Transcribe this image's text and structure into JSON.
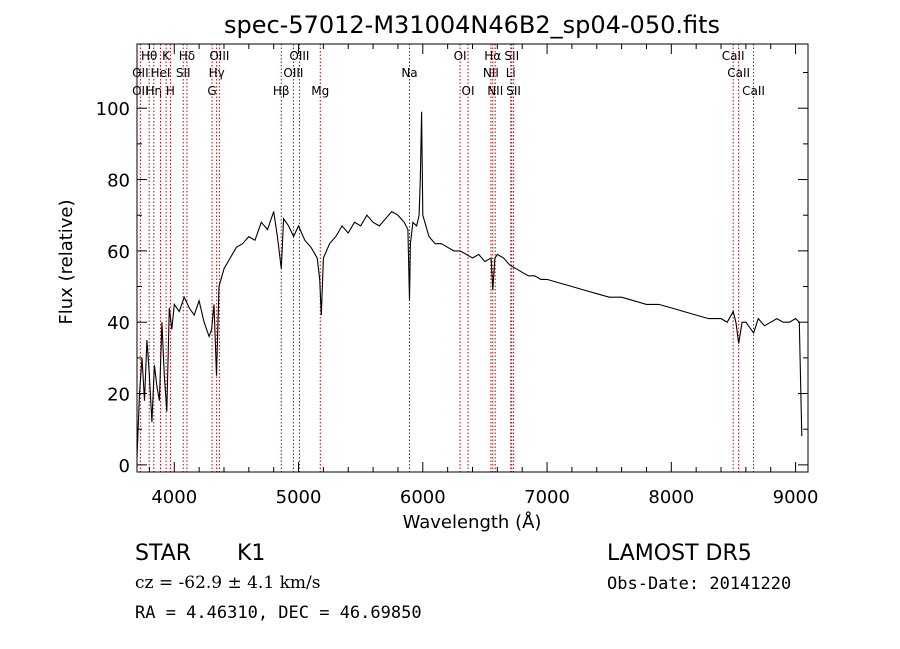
{
  "chart_data": {
    "type": "line",
    "title": "spec-57012-M31004N46B2_sp04-050.fits",
    "xlabel": "Wavelength (Å)",
    "ylabel": "Flux (relative)",
    "xlim": [
      3700,
      9100
    ],
    "ylim": [
      -2,
      118
    ],
    "x_ticks": [
      4000,
      5000,
      6000,
      7000,
      8000,
      9000
    ],
    "y_ticks": [
      0,
      20,
      40,
      60,
      80,
      100
    ],
    "grid": false,
    "series": [
      {
        "x": [
          3700,
          3720,
          3740,
          3760,
          3780,
          3800,
          3820,
          3840,
          3860,
          3880,
          3900,
          3920,
          3940,
          3960,
          3980,
          4000,
          4040,
          4080,
          4120,
          4160,
          4200,
          4240,
          4280,
          4300,
          4320,
          4340,
          4360,
          4400,
          4450,
          4500,
          4550,
          4600,
          4650,
          4700,
          4750,
          4800,
          4830,
          4861,
          4880,
          4920,
          4960,
          5000,
          5050,
          5100,
          5150,
          5170,
          5183,
          5200,
          5250,
          5300,
          5350,
          5400,
          5450,
          5500,
          5550,
          5600,
          5650,
          5700,
          5750,
          5800,
          5850,
          5880,
          5893,
          5900,
          5920,
          5950,
          5970,
          5980,
          5990,
          6000,
          6050,
          6100,
          6150,
          6200,
          6250,
          6300,
          6350,
          6400,
          6450,
          6500,
          6550,
          6563,
          6580,
          6600,
          6650,
          6700,
          6750,
          6800,
          6850,
          6900,
          6950,
          7000,
          7100,
          7200,
          7300,
          7400,
          7500,
          7600,
          7700,
          7800,
          7900,
          8000,
          8100,
          8200,
          8300,
          8400,
          8450,
          8498,
          8520,
          8542,
          8570,
          8600,
          8662,
          8700,
          8750,
          8800,
          8850,
          8900,
          8950,
          9000,
          9030,
          9050
        ],
        "y": [
          2,
          20,
          30,
          18,
          35,
          25,
          12,
          28,
          22,
          18,
          40,
          25,
          15,
          44,
          38,
          45,
          43,
          47,
          44,
          42,
          46,
          40,
          36,
          38,
          45,
          25,
          50,
          55,
          58,
          61,
          62,
          64,
          63,
          68,
          66,
          71,
          64,
          55,
          69,
          67,
          64,
          67,
          63,
          61,
          58,
          52,
          42,
          58,
          62,
          64,
          67,
          65,
          68,
          67,
          70,
          68,
          67,
          69,
          71,
          70,
          68,
          66,
          46,
          62,
          68,
          67,
          70,
          80,
          99,
          70,
          64,
          62,
          62,
          61,
          60,
          60,
          59,
          58,
          59,
          57,
          58,
          49,
          58,
          59,
          58,
          56,
          55,
          54,
          53,
          53,
          52,
          52,
          51,
          50,
          49,
          48,
          47,
          47,
          46,
          45,
          45,
          44,
          43,
          42,
          41,
          41,
          40,
          43,
          40,
          34,
          40,
          40,
          37,
          41,
          39,
          40,
          41,
          40,
          40,
          41,
          40,
          8
        ]
      }
    ],
    "lines": [
      {
        "label": "OII",
        "wave": 3727,
        "row": 2
      },
      {
        "label": "Hθ",
        "wave": 3798,
        "row": 1
      },
      {
        "label": "OII",
        "wave": 3727,
        "row": 3
      },
      {
        "label": "Hη",
        "wave": 3835,
        "row": 3
      },
      {
        "label": "HeI",
        "wave": 3889,
        "row": 2
      },
      {
        "label": "K",
        "wave": 3934,
        "row": 1
      },
      {
        "label": "H",
        "wave": 3969,
        "row": 3
      },
      {
        "label": "SII",
        "wave": 4072,
        "row": 2
      },
      {
        "label": "Hδ",
        "wave": 4102,
        "row": 1
      },
      {
        "label": "G",
        "wave": 4304,
        "row": 3
      },
      {
        "label": "Hγ",
        "wave": 4341,
        "row": 2
      },
      {
        "label": "OIII",
        "wave": 4363,
        "row": 1
      },
      {
        "label": "Hβ",
        "wave": 4861,
        "row": 3
      },
      {
        "label": "OIII",
        "wave": 4959,
        "row": 2
      },
      {
        "label": "OIII",
        "wave": 5007,
        "row": 1
      },
      {
        "label": "Mg",
        "wave": 5175,
        "row": 3
      },
      {
        "label": "Na",
        "wave": 5893,
        "row": 2
      },
      {
        "label": "OI",
        "wave": 6300,
        "row": 1
      },
      {
        "label": "OI",
        "wave": 6364,
        "row": 3
      },
      {
        "label": "NII",
        "wave": 6548,
        "row": 2
      },
      {
        "label": "Hα",
        "wave": 6563,
        "row": 1
      },
      {
        "label": "NII",
        "wave": 6583,
        "row": 3
      },
      {
        "label": "SII",
        "wave": 6716,
        "row": 1
      },
      {
        "label": "Li",
        "wave": 6708,
        "row": 2
      },
      {
        "label": "SII",
        "wave": 6731,
        "row": 3
      },
      {
        "label": "CaII",
        "wave": 8498,
        "row": 1
      },
      {
        "label": "CaII",
        "wave": 8542,
        "row": 2
      },
      {
        "label": "CaII",
        "wave": 8662,
        "row": 3
      }
    ]
  },
  "info": {
    "class_label": "STAR",
    "subclass": "K1",
    "survey": "LAMOST  DR5",
    "cz_text": "cz = -62.9 ± 4.1 km/s",
    "obs_date": "Obs-Date: 20141220",
    "coords": "RA =   4.46310, DEC =  46.69850"
  }
}
